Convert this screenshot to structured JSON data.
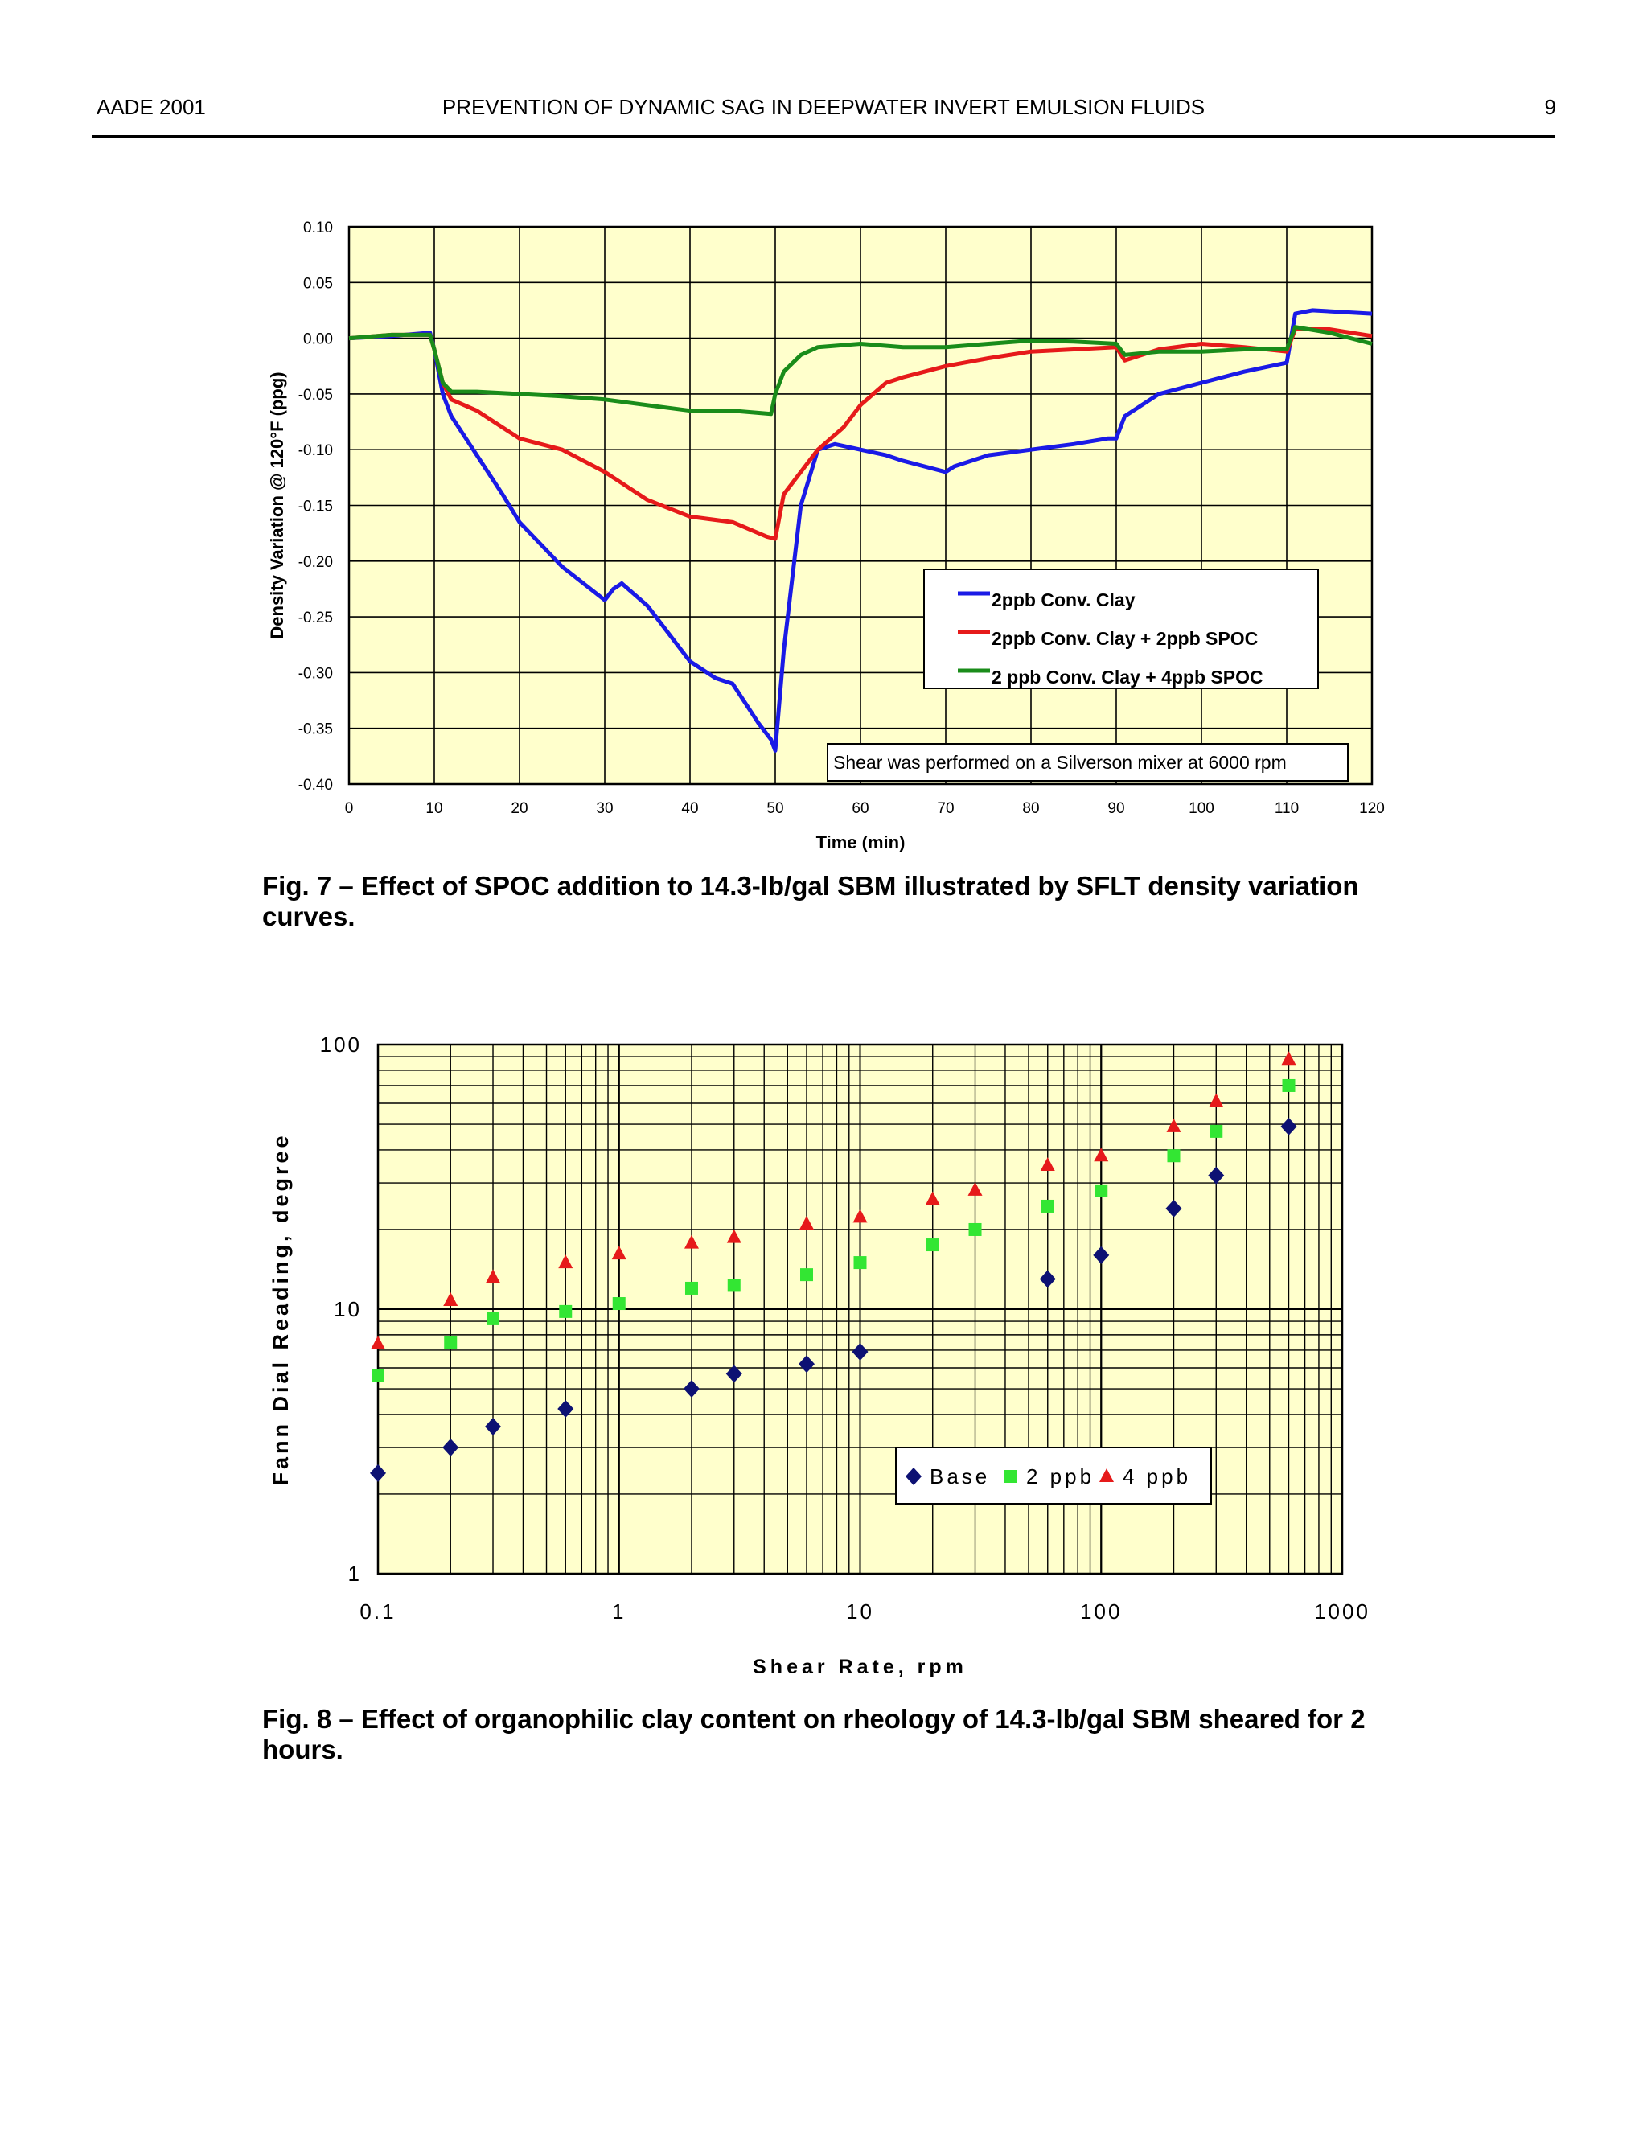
{
  "header": {
    "left": "AADE 2001",
    "center": "PREVENTION OF DYNAMIC SAG IN DEEPWATER INVERT EMULSION FLUIDS",
    "page_number": "9"
  },
  "figures": {
    "fig7": {
      "caption_line1": "Fig. 7 – Effect of SPOC addition to 14.3-lb/gal SBM illustrated by SFLT density variation",
      "caption_line2": "curves."
    },
    "fig8": {
      "caption_line1": "Fig. 8 – Effect of organophilic clay content on rheology of 14.3-lb/gal SBM sheared for 2",
      "caption_line2": "hours."
    }
  },
  "chart_data": [
    {
      "type": "line",
      "xlabel": "Time (min)",
      "ylabel": "Density Variation @ 120°F (ppg)",
      "xlim": [
        0,
        120
      ],
      "ylim": [
        -0.4,
        0.1
      ],
      "x_ticks": [
        "0",
        "10",
        "20",
        "30",
        "40",
        "50",
        "60",
        "70",
        "80",
        "90",
        "100",
        "110",
        "120"
      ],
      "y_ticks": [
        "0.10",
        "0.05",
        "0.00",
        "-0.05",
        "-0.10",
        "-0.15",
        "-0.20",
        "-0.25",
        "-0.30",
        "-0.35",
        "-0.40"
      ],
      "grid": true,
      "background": "#FFFFCC",
      "legend_position": "lower-right",
      "annotation": "Shear was performed on a Silverson mixer at 6000 rpm",
      "series": [
        {
          "name": "2ppb Conv. Clay",
          "color": "#1A1AE6",
          "x": [
            0,
            5,
            9.5,
            10,
            11,
            12,
            15,
            18,
            20,
            25,
            30,
            31,
            32,
            35,
            40,
            43,
            45,
            48,
            49.5,
            50,
            51,
            53,
            55,
            57,
            60,
            63,
            65,
            70,
            71,
            75,
            80,
            85,
            89,
            90,
            91,
            95,
            100,
            105,
            110,
            111,
            113,
            120
          ],
          "y": [
            0.0,
            0.002,
            0.005,
            -0.01,
            -0.05,
            -0.07,
            -0.105,
            -0.14,
            -0.165,
            -0.205,
            -0.235,
            -0.225,
            -0.22,
            -0.24,
            -0.29,
            -0.305,
            -0.31,
            -0.345,
            -0.36,
            -0.37,
            -0.28,
            -0.15,
            -0.1,
            -0.095,
            -0.1,
            -0.105,
            -0.11,
            -0.12,
            -0.115,
            -0.105,
            -0.1,
            -0.095,
            -0.09,
            -0.09,
            -0.07,
            -0.05,
            -0.04,
            -0.03,
            -0.022,
            0.022,
            0.025,
            0.022
          ]
        },
        {
          "name": "2ppb Conv. Clay + 2ppb SPOC",
          "color": "#E61A1A",
          "x": [
            0,
            5,
            9.5,
            10,
            11,
            12,
            15,
            18,
            20,
            25,
            30,
            35,
            40,
            45,
            49,
            50,
            51,
            53,
            55,
            58,
            60,
            63,
            65,
            70,
            75,
            80,
            85,
            90,
            91,
            95,
            100,
            105,
            110,
            111,
            115,
            120
          ],
          "y": [
            0.0,
            0.003,
            0.003,
            -0.01,
            -0.04,
            -0.055,
            -0.065,
            -0.08,
            -0.09,
            -0.1,
            -0.12,
            -0.145,
            -0.16,
            -0.165,
            -0.178,
            -0.18,
            -0.14,
            -0.12,
            -0.1,
            -0.08,
            -0.06,
            -0.04,
            -0.035,
            -0.025,
            -0.018,
            -0.012,
            -0.01,
            -0.008,
            -0.02,
            -0.01,
            -0.005,
            -0.008,
            -0.012,
            0.008,
            0.008,
            0.002
          ]
        },
        {
          "name": "2 ppb Conv. Clay + 4ppb SPOC",
          "color": "#1A8C1A",
          "x": [
            0,
            5,
            9.5,
            10,
            11,
            12,
            15,
            20,
            25,
            30,
            35,
            40,
            45,
            49.5,
            50,
            51,
            53,
            55,
            60,
            65,
            70,
            75,
            80,
            85,
            90,
            91,
            95,
            100,
            105,
            110,
            111,
            115,
            120
          ],
          "y": [
            0.0,
            0.003,
            0.003,
            -0.01,
            -0.04,
            -0.048,
            -0.048,
            -0.05,
            -0.052,
            -0.055,
            -0.06,
            -0.065,
            -0.065,
            -0.068,
            -0.05,
            -0.03,
            -0.015,
            -0.008,
            -0.005,
            -0.008,
            -0.008,
            -0.005,
            -0.002,
            -0.003,
            -0.005,
            -0.015,
            -0.012,
            -0.012,
            -0.01,
            -0.01,
            0.01,
            0.005,
            -0.005
          ]
        }
      ]
    },
    {
      "type": "scatter",
      "xlabel": "Shear Rate, rpm",
      "ylabel": "Fann Dial Reading, degree",
      "x_scale": "log",
      "y_scale": "log",
      "xlim": [
        0.1,
        1000
      ],
      "ylim": [
        1,
        100
      ],
      "x_ticks": [
        "0.1",
        "1",
        "10",
        "100",
        "1000"
      ],
      "y_ticks": [
        "100",
        "10",
        "1"
      ],
      "grid": true,
      "background": "#FFFFCC",
      "legend_position": "lower-right",
      "x": [
        0.1,
        0.2,
        0.3,
        0.6,
        1,
        2,
        3,
        6,
        10,
        20,
        30,
        60,
        100,
        200,
        300,
        600
      ],
      "series": [
        {
          "name": "Base",
          "marker": "diamond",
          "color": "#0D1173",
          "values": [
            2.4,
            3.0,
            3.6,
            4.2,
            null,
            5.0,
            5.7,
            6.2,
            6.9,
            null,
            null,
            13,
            16,
            24,
            32,
            49
          ]
        },
        {
          "name": "2 ppb",
          "marker": "square",
          "color": "#33E633",
          "values": [
            5.6,
            7.5,
            9.2,
            9.8,
            10.5,
            12,
            12.3,
            13.5,
            15,
            17.5,
            20,
            24.5,
            28,
            38,
            47,
            70
          ]
        },
        {
          "name": "4 ppb",
          "marker": "triangle",
          "color": "#E61A1A",
          "values": [
            7.4,
            10.8,
            13.2,
            15,
            16.2,
            17.8,
            18.7,
            21,
            22.3,
            26,
            28.2,
            35,
            38,
            49,
            61,
            88
          ]
        }
      ]
    }
  ]
}
